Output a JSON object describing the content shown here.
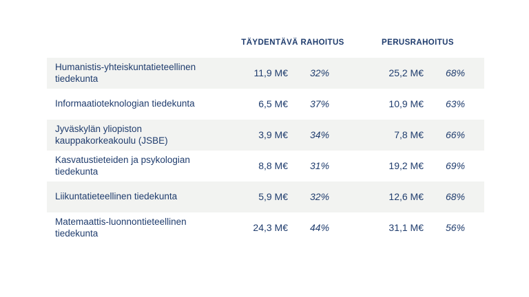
{
  "colors": {
    "text_navy": "#1f3c6d",
    "row_stripe": "#f2f3f1",
    "background": "#ffffff"
  },
  "chart_data": {
    "type": "table",
    "title": "",
    "columns": [
      "",
      "TÄYDENTÄVÄ RAHOITUS",
      "PERUSRAHOITUS"
    ],
    "unit": "M€",
    "rows": [
      {
        "faculty": "Humanistis-yhteiskuntatieteellinen tiedekunta",
        "taydentava_amount": "11,9 M€",
        "taydentava_share": "32%",
        "perus_amount": "25,2 M€",
        "perus_share": "68%"
      },
      {
        "faculty": "Informaatioteknologian tiedekunta",
        "taydentava_amount": "6,5 M€",
        "taydentava_share": "37%",
        "perus_amount": "10,9 M€",
        "perus_share": "63%"
      },
      {
        "faculty": "Jyväskylän yliopiston kauppakorkeakoulu (JSBE)",
        "taydentava_amount": "3,9 M€",
        "taydentava_share": "34%",
        "perus_amount": "7,8 M€",
        "perus_share": "66%"
      },
      {
        "faculty": "Kasvatustieteiden ja psykologian tiedekunta",
        "taydentava_amount": "8,8 M€",
        "taydentava_share": "31%",
        "perus_amount": "19,2 M€",
        "perus_share": "69%"
      },
      {
        "faculty": "Liikuntatieteellinen tiedekunta",
        "taydentava_amount": "5,9 M€",
        "taydentava_share": "32%",
        "perus_amount": "12,6 M€",
        "perus_share": "68%"
      },
      {
        "faculty": "Matemaattis-luonnontieteellinen tiedekunta",
        "taydentava_amount": "24,3 M€",
        "taydentava_share": "44%",
        "perus_amount": "31,1 M€",
        "perus_share": "56%"
      }
    ]
  }
}
